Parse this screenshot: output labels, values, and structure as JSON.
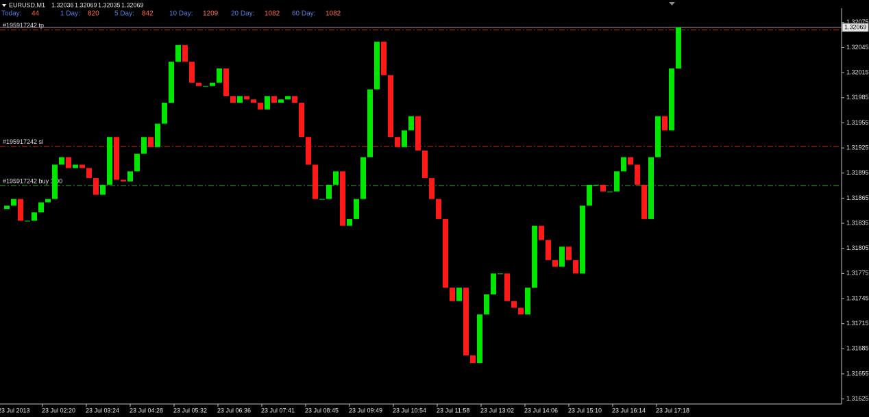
{
  "chart_data": {
    "type": "price-bars",
    "title": "EURUSD,M1",
    "quote": [
      1.32036,
      1.32069,
      1.32035,
      1.32069
    ],
    "stats": [
      {
        "label": "Today:",
        "value": 44
      },
      {
        "label": "1 Day:",
        "value": 820
      },
      {
        "label": "5 Day:",
        "value": 842
      },
      {
        "label": "10 Day:",
        "value": 1209
      },
      {
        "label": "20 Day:",
        "value": 1082
      },
      {
        "label": "60 Day:",
        "value": 1082
      }
    ],
    "x_labels": [
      "23 Jul 2013",
      "23 Jul 02:20",
      "23 Jul 03:24",
      "23 Jul 04:28",
      "23 Jul 05:32",
      "23 Jul 06:36",
      "23 Jul 07:41",
      "23 Jul 08:45",
      "23 Jul 09:49",
      "23 Jul 10:54",
      "23 Jul 11:58",
      "23 Jul 13:02",
      "23 Jul 14:06",
      "23 Jul 15:10",
      "23 Jul 16:14",
      "23 Jul 17:18"
    ],
    "values": [
      1.31852,
      1.31856,
      1.31864,
      1.31838,
      1.31838,
      1.31848,
      1.3186,
      1.31864,
      1.31905,
      1.31914,
      1.31901,
      1.31905,
      1.31901,
      1.31889,
      1.31869,
      1.31881,
      1.31938,
      1.31887,
      1.31885,
      1.31897,
      1.31918,
      1.31938,
      1.31926,
      1.31954,
      1.31979,
      1.32028,
      1.32048,
      1.32028,
      1.32003,
      1.31999,
      1.31999,
      1.32003,
      1.3202,
      1.31987,
      1.31979,
      1.31987,
      1.31983,
      1.31979,
      1.31971,
      1.31987,
      1.31979,
      1.31983,
      1.31987,
      1.31979,
      1.31938,
      1.31905,
      1.31864,
      1.31864,
      1.31881,
      1.31897,
      1.31832,
      1.3184,
      1.31864,
      1.31914,
      1.31995,
      1.32052,
      1.32012,
      1.31938,
      1.31926,
      1.31946,
      1.31963,
      1.31922,
      1.31889,
      1.31864,
      1.3184,
      1.31758,
      1.31742,
      1.31758,
      1.31677,
      1.31668,
      1.31726,
      1.3175,
      1.31775,
      1.31775,
      1.31742,
      1.31734,
      1.31726,
      1.31758,
      1.31832,
      1.31815,
      1.31791,
      1.31783,
      1.31807,
      1.31791,
      1.31775,
      1.31856,
      1.31881,
      1.31881,
      1.31873,
      1.31873,
      1.31897,
      1.31914,
      1.31905,
      1.31881,
      1.3184,
      1.31914,
      1.31963,
      1.31946,
      1.3202,
      1.32069
    ],
    "up_color": "#00e600",
    "down_color": "#ff1a1a",
    "ylim": [
      1.31619,
      1.32092
    ],
    "yticks": [
      1.32075,
      1.32045,
      1.32015,
      1.31985,
      1.31955,
      1.31925,
      1.31895,
      1.31865,
      1.31835,
      1.31805,
      1.31775,
      1.31745,
      1.31715,
      1.31685,
      1.31655,
      1.31625
    ],
    "levels": [
      {
        "label": "#195917242 tp",
        "value": 1.32066,
        "color": "#cc2200"
      },
      {
        "label": "#195917242 sl",
        "value": 1.31927,
        "color": "#cc2200"
      },
      {
        "label": "#195917242 buy 1.00",
        "value": 1.3188,
        "color": "#2fa82f"
      }
    ],
    "current_price": 1.32069
  }
}
